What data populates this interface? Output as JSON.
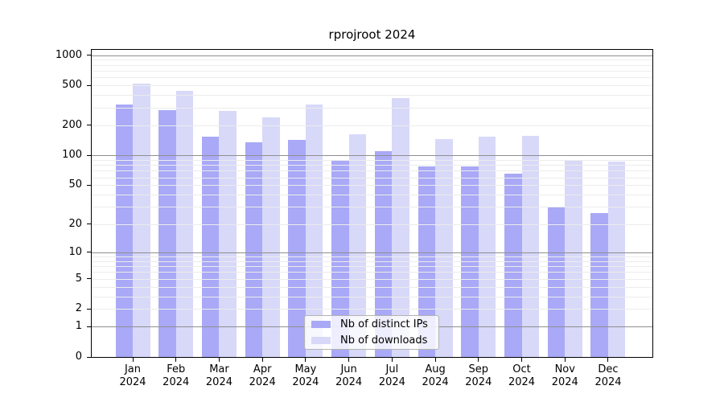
{
  "chart_data": {
    "type": "bar",
    "title": "rprojroot 2024",
    "categories": [
      "Jan 2024",
      "Feb 2024",
      "Mar 2024",
      "Apr 2024",
      "May 2024",
      "Jun 2024",
      "Jul 2024",
      "Aug 2024",
      "Sep 2024",
      "Oct 2024",
      "Nov 2024",
      "Dec 2024"
    ],
    "series": [
      {
        "name": "Nb of distinct IPs",
        "color": "#a9a9f7",
        "values": [
          320,
          283,
          153,
          136,
          144,
          89,
          111,
          77,
          77,
          65,
          30,
          26
        ]
      },
      {
        "name": "Nb of downloads",
        "color": "#d8d8f9",
        "values": [
          520,
          440,
          280,
          240,
          320,
          162,
          374,
          145,
          153,
          156,
          90,
          86
        ]
      }
    ],
    "y_ticks": [
      1000,
      500,
      200,
      100,
      50,
      20,
      10,
      5,
      2,
      1,
      0
    ],
    "ylim": [
      0,
      1000
    ],
    "scale": "log1p",
    "xlabel": "",
    "ylabel": "",
    "grid": {
      "on": true,
      "minor_color": "#ececec",
      "major_color": "#8f8f8f",
      "major_at": [
        1,
        10,
        100,
        1000
      ]
    },
    "legend_position": "bottom-center-inside"
  }
}
